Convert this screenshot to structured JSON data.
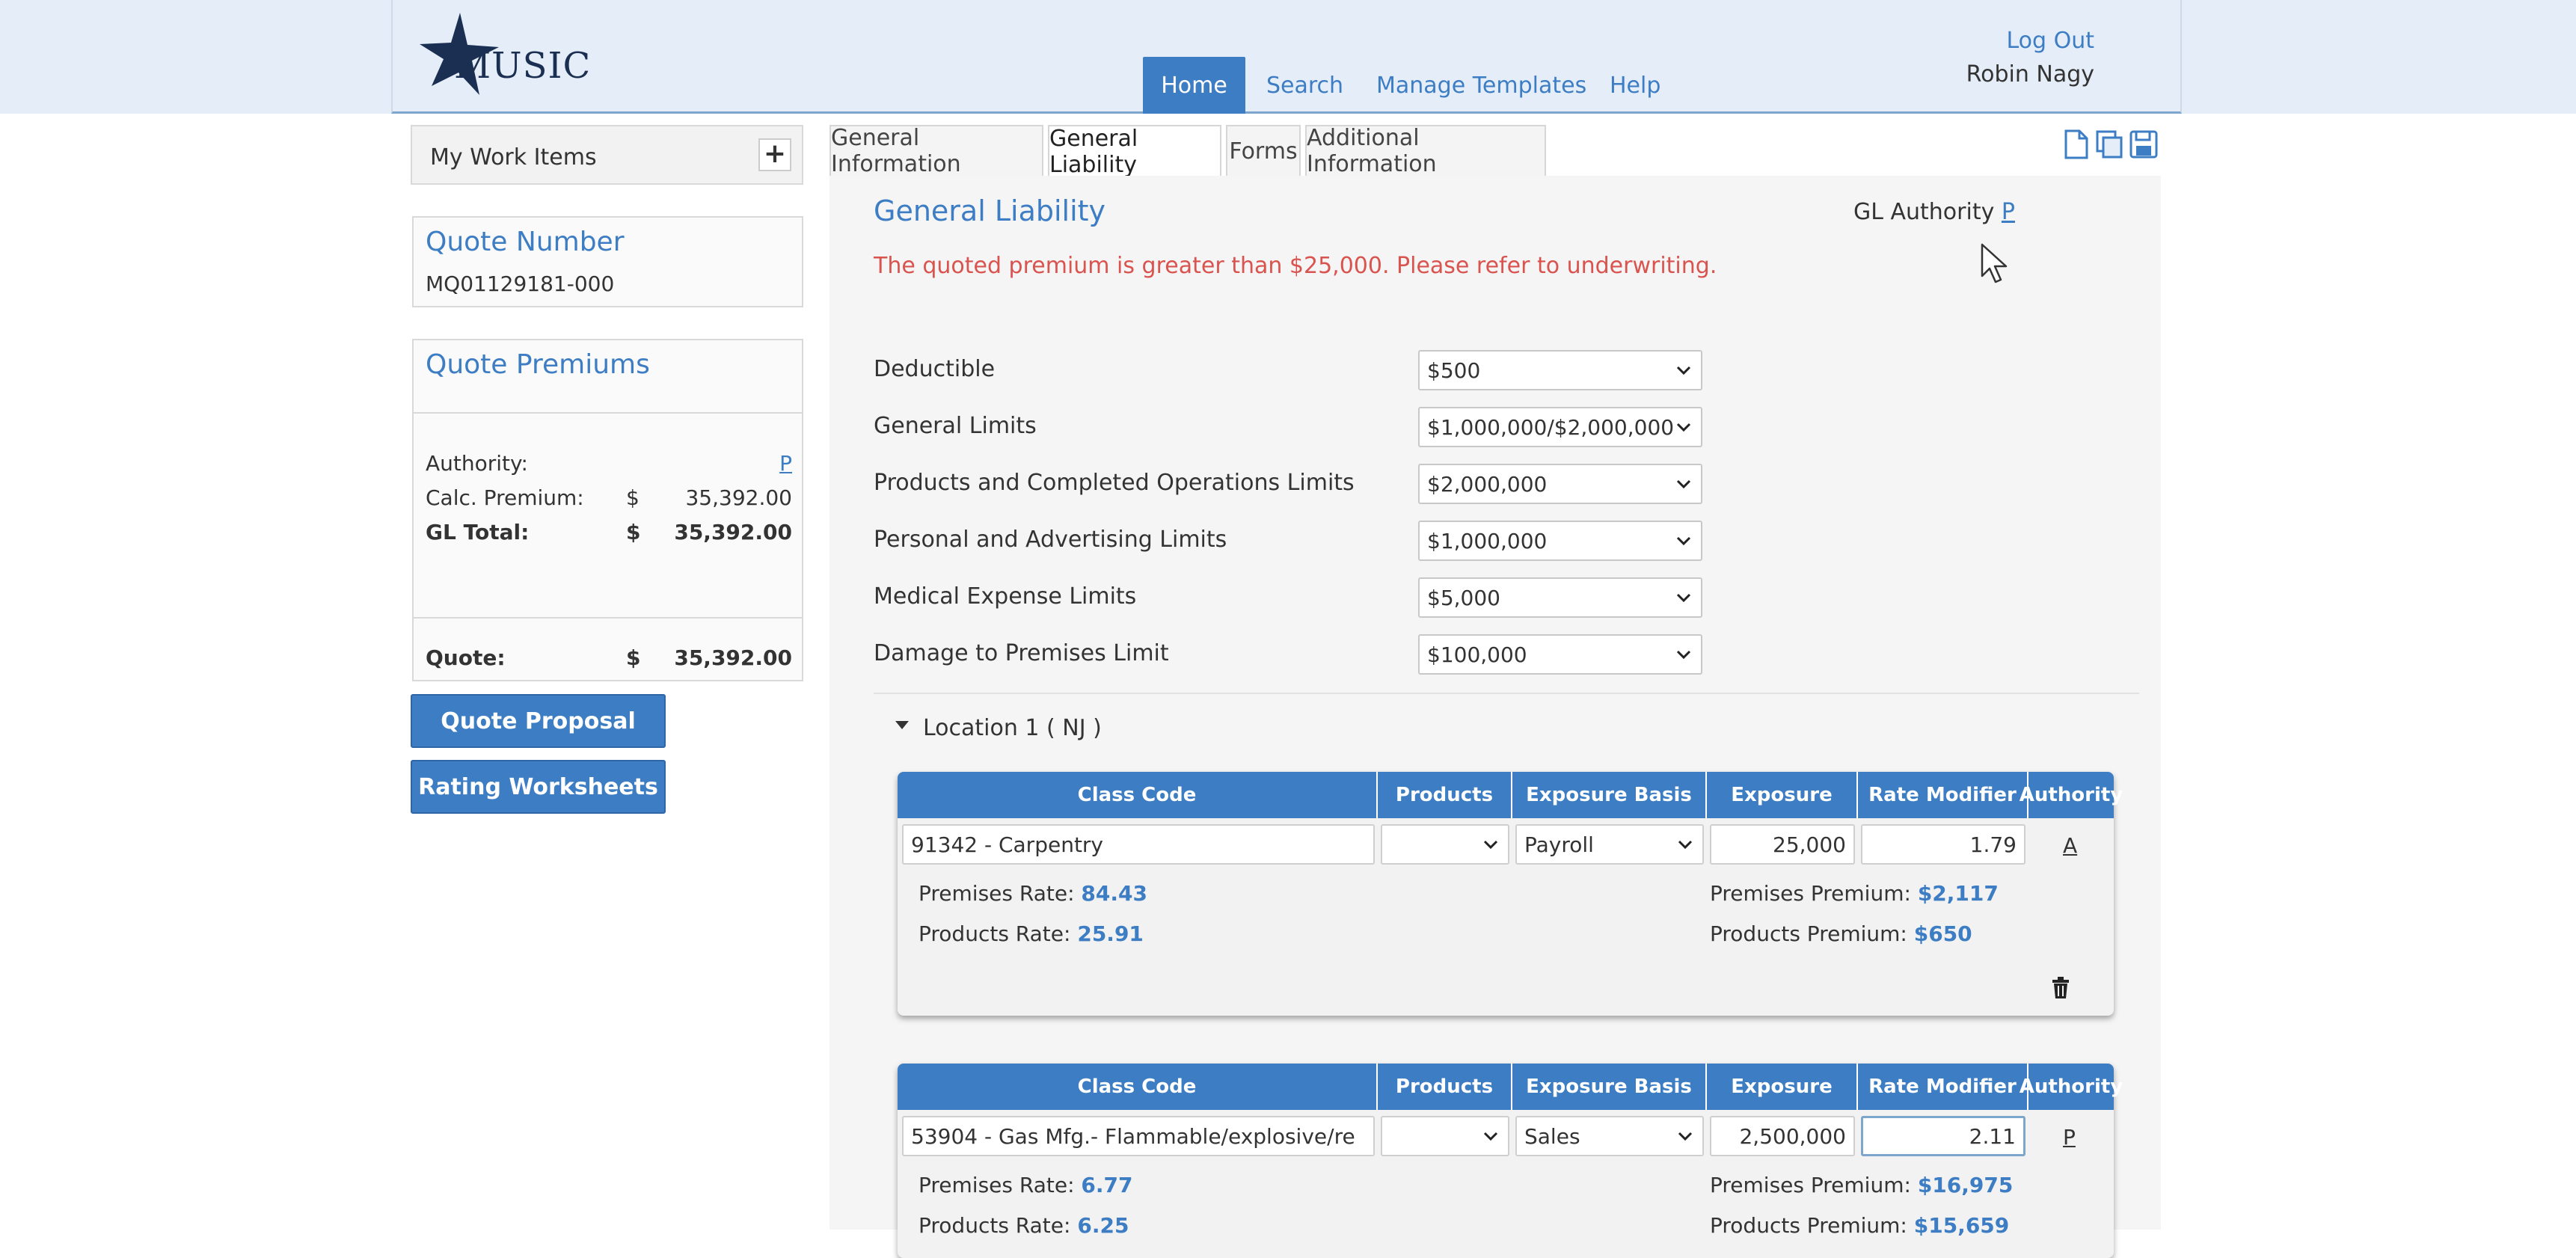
{
  "header": {
    "logo_text": "MUSIC",
    "nav": [
      "Home",
      "Search",
      "Manage Templates",
      "Help"
    ],
    "logout": "Log Out",
    "user": "Robin Nagy"
  },
  "sidebar": {
    "work_items": "My Work Items",
    "quote_number_title": "Quote Number",
    "quote_number": "MQ01129181-000",
    "quote_premiums_title": "Quote Premiums",
    "authority_label": "Authority:",
    "authority_value": "P",
    "calc_label": "Calc. Premium:",
    "currency": "$",
    "calc_value": "35,392.00",
    "gl_total_label": "GL Total:",
    "gl_total_value": "35,392.00",
    "quote_label": "Quote:",
    "quote_value": "35,392.00",
    "btn_proposal": "Quote Proposal",
    "btn_worksheets": "Rating Worksheets"
  },
  "tabs": [
    "General Information",
    "General Liability",
    "Forms",
    "Additional Information"
  ],
  "main": {
    "title": "General Liability",
    "authority_label": "GL Authority",
    "authority_value": "P",
    "warning": "The quoted premium is greater than $25,000. Please refer to underwriting.",
    "fields": [
      {
        "label": "Deductible",
        "value": "$500"
      },
      {
        "label": "General Limits",
        "value": "$1,000,000/$2,000,000"
      },
      {
        "label": "Products and Completed Operations Limits",
        "value": "$2,000,000"
      },
      {
        "label": "Personal and Advertising Limits",
        "value": "$1,000,000"
      },
      {
        "label": "Medical Expense Limits",
        "value": "$5,000"
      },
      {
        "label": "Damage to Premises Limit",
        "value": "$100,000"
      }
    ],
    "location": "Location 1 ( NJ )",
    "columns": [
      "Class Code",
      "Products",
      "Exposure Basis",
      "Exposure",
      "Rate Modifier",
      "Authority"
    ],
    "classes": [
      {
        "class_code": "91342 - Carpentry",
        "products": "",
        "exposure_basis": "Payroll",
        "exposure": "25,000",
        "rate_modifier": "1.79",
        "authority": "A",
        "premises_rate_label": "Premises Rate:",
        "premises_rate": "84.43",
        "products_rate_label": "Products Rate:",
        "products_rate": "25.91",
        "premises_premium_label": "Premises Premium:",
        "premises_premium": "$2,117",
        "products_premium_label": "Products Premium:",
        "products_premium": "$650"
      },
      {
        "class_code": "53904 - Gas Mfg.- Flammable/explosive/re",
        "products": "",
        "exposure_basis": "Sales",
        "exposure": "2,500,000",
        "rate_modifier": "2.11",
        "authority": "P",
        "premises_rate_label": "Premises Rate:",
        "premises_rate": "6.77",
        "products_rate_label": "Products Rate:",
        "products_rate": "6.25",
        "premises_premium_label": "Premises Premium:",
        "premises_premium": "$16,975",
        "products_premium_label": "Products Premium:",
        "products_premium": "$15,659"
      }
    ]
  },
  "colors": {
    "accent": "#3d7dc4",
    "warning": "#d9534f",
    "header_bg": "#e5eef8"
  }
}
